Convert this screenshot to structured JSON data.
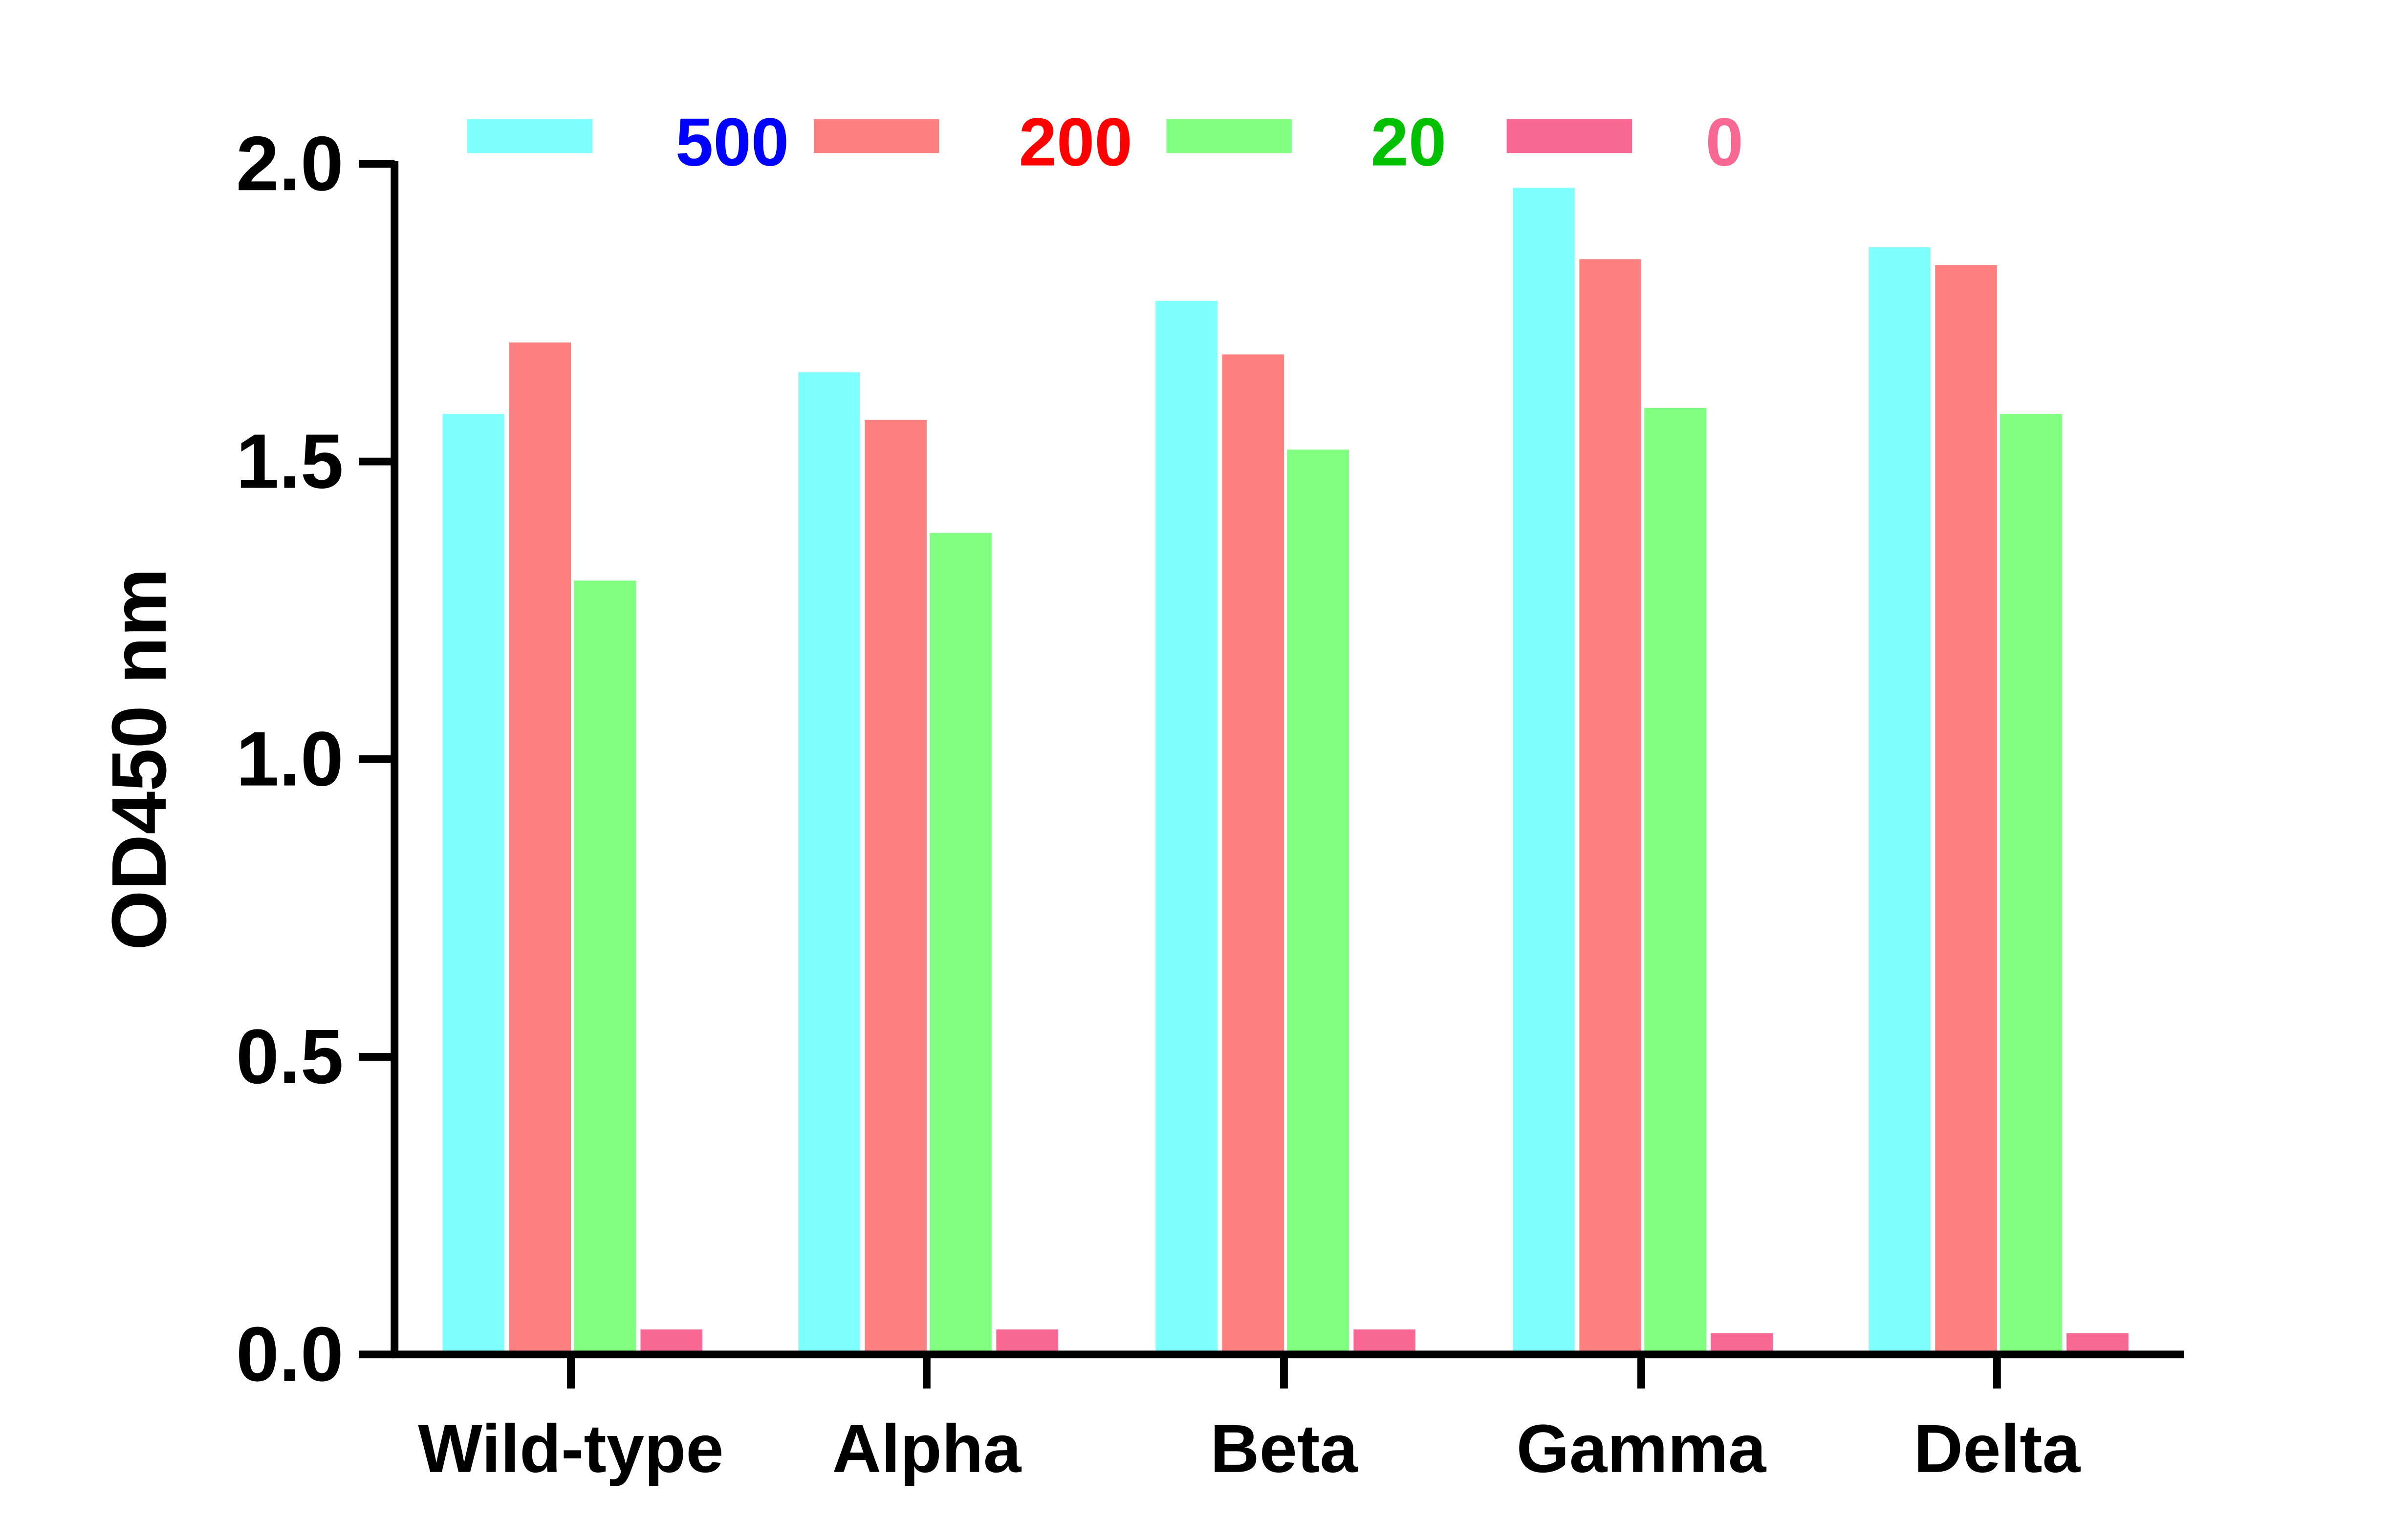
{
  "chart_data": {
    "type": "bar",
    "title": "",
    "xlabel": "",
    "ylabel": "OD450 nm",
    "ylim": [
      0,
      2.0
    ],
    "yticks": [
      "0.0",
      "0.5",
      "1.0",
      "1.5",
      "2.0"
    ],
    "grid": false,
    "legend_position": "top",
    "categories": [
      "Wild-type",
      "Alpha",
      "Beta",
      "Gamma",
      "Delta"
    ],
    "series": [
      {
        "name": "500",
        "color": "#80FFFF",
        "label_color": "#0000FF",
        "values": [
          1.58,
          1.65,
          1.77,
          1.96,
          1.86
        ]
      },
      {
        "name": "200",
        "color": "#FF8080",
        "label_color": "#FF0000",
        "values": [
          1.7,
          1.57,
          1.68,
          1.84,
          1.83
        ]
      },
      {
        "name": "20",
        "color": "#80FF80",
        "label_color": "#00C000",
        "values": [
          1.3,
          1.38,
          1.52,
          1.59,
          1.58
        ]
      },
      {
        "name": "0",
        "color": "#F86893",
        "label_color": "#F86893",
        "values": [
          0.042,
          0.042,
          0.042,
          0.036,
          0.036
        ]
      }
    ]
  }
}
